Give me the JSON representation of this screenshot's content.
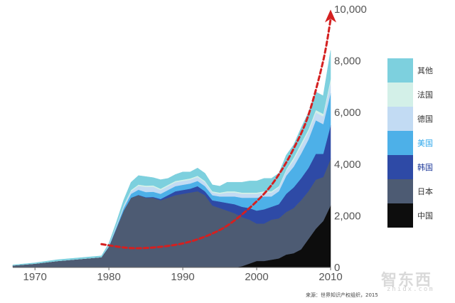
{
  "chart_data": {
    "type": "area",
    "stacked": true,
    "x": [
      1967,
      1970,
      1973,
      1975,
      1977,
      1979,
      1980,
      1981,
      1982,
      1983,
      1984,
      1985,
      1986,
      1987,
      1988,
      1989,
      1990,
      1991,
      1992,
      1993,
      1994,
      1995,
      1996,
      1997,
      1998,
      1999,
      2000,
      2001,
      2002,
      2003,
      2004,
      2005,
      2006,
      2007,
      2008,
      2009,
      2010
    ],
    "series": [
      {
        "name": "中国",
        "color": "#0d0d0d",
        "values": [
          0,
          0,
          0,
          0,
          0,
          0,
          0,
          0,
          0,
          0,
          0,
          0,
          0,
          0,
          0,
          0,
          0,
          0,
          0,
          0,
          0,
          0,
          0,
          0,
          50,
          150,
          250,
          250,
          300,
          350,
          500,
          550,
          700,
          1100,
          1500,
          1800,
          2400
        ]
      },
      {
        "name": "日本",
        "color": "#4d5b73",
        "values": [
          80,
          150,
          250,
          300,
          350,
          400,
          800,
          1500,
          2200,
          2700,
          2800,
          2700,
          2700,
          2600,
          2700,
          2800,
          2850,
          2900,
          2950,
          2800,
          2400,
          2300,
          2200,
          2100,
          1900,
          1700,
          1450,
          1450,
          1550,
          1550,
          1650,
          1750,
          1900,
          1850,
          1900,
          1700,
          1800
        ]
      },
      {
        "name": "韩国",
        "color": "#2e4aa6",
        "values": [
          0,
          0,
          0,
          0,
          0,
          0,
          0,
          0,
          0,
          0,
          10,
          20,
          30,
          50,
          100,
          150,
          150,
          150,
          200,
          150,
          200,
          250,
          300,
          350,
          400,
          450,
          500,
          550,
          500,
          550,
          700,
          800,
          850,
          900,
          1000,
          900,
          1300
        ]
      },
      {
        "name": "美国",
        "color": "#4db0e8",
        "values": [
          0,
          0,
          0,
          0,
          0,
          0,
          20,
          50,
          100,
          150,
          200,
          200,
          200,
          200,
          200,
          200,
          200,
          200,
          200,
          200,
          200,
          200,
          250,
          300,
          350,
          400,
          500,
          500,
          400,
          500,
          700,
          800,
          950,
          1100,
          1300,
          1150,
          1250
        ]
      },
      {
        "name": "德国",
        "color": "#c2dbf3",
        "values": [
          0,
          0,
          0,
          0,
          0,
          0,
          20,
          50,
          80,
          100,
          150,
          200,
          200,
          150,
          150,
          150,
          150,
          150,
          150,
          150,
          100,
          100,
          150,
          150,
          150,
          150,
          150,
          150,
          150,
          150,
          200,
          250,
          300,
          300,
          300,
          300,
          400
        ]
      },
      {
        "name": "法国",
        "color": "#d3f0e8",
        "values": [
          0,
          0,
          0,
          0,
          0,
          0,
          10,
          20,
          30,
          50,
          50,
          50,
          50,
          50,
          50,
          50,
          50,
          50,
          50,
          50,
          50,
          50,
          50,
          50,
          50,
          50,
          50,
          50,
          50,
          50,
          50,
          100,
          100,
          100,
          100,
          100,
          150
        ]
      },
      {
        "name": "其他",
        "color": "#7dd0de",
        "values": [
          20,
          30,
          50,
          50,
          50,
          50,
          80,
          120,
          200,
          300,
          350,
          350,
          300,
          350,
          250,
          250,
          300,
          250,
          300,
          300,
          250,
          250,
          350,
          350,
          400,
          450,
          450,
          500,
          500,
          500,
          550,
          500,
          600,
          650,
          700,
          700,
          1100
        ]
      }
    ],
    "xticks": [
      "1970",
      "1980",
      "1990",
      "2000",
      "2010"
    ],
    "yticks": [
      "0",
      "2,000",
      "4,000",
      "6,000",
      "8,000",
      "10,000"
    ],
    "xlim": [
      1967,
      2010
    ],
    "ylim": [
      0,
      10000
    ],
    "trend_line": {
      "style": "dashed-arrow",
      "color": "#d42020",
      "x": [
        1979,
        1983,
        1987,
        1991,
        1995,
        1998,
        2001,
        2003,
        2005,
        2007,
        2009,
        2010
      ],
      "y": [
        900,
        750,
        800,
        1000,
        1450,
        2050,
        2850,
        3600,
        4600,
        5900,
        8000,
        9600
      ]
    },
    "legend": {
      "position": "right",
      "order": [
        "其他",
        "法国",
        "德国",
        "美国",
        "韩国",
        "日本",
        "中国"
      ]
    }
  },
  "source_note": "来源：世界知识产权组织，2015",
  "watermark": {
    "main": "智东西",
    "sub": "zhidx.com"
  }
}
